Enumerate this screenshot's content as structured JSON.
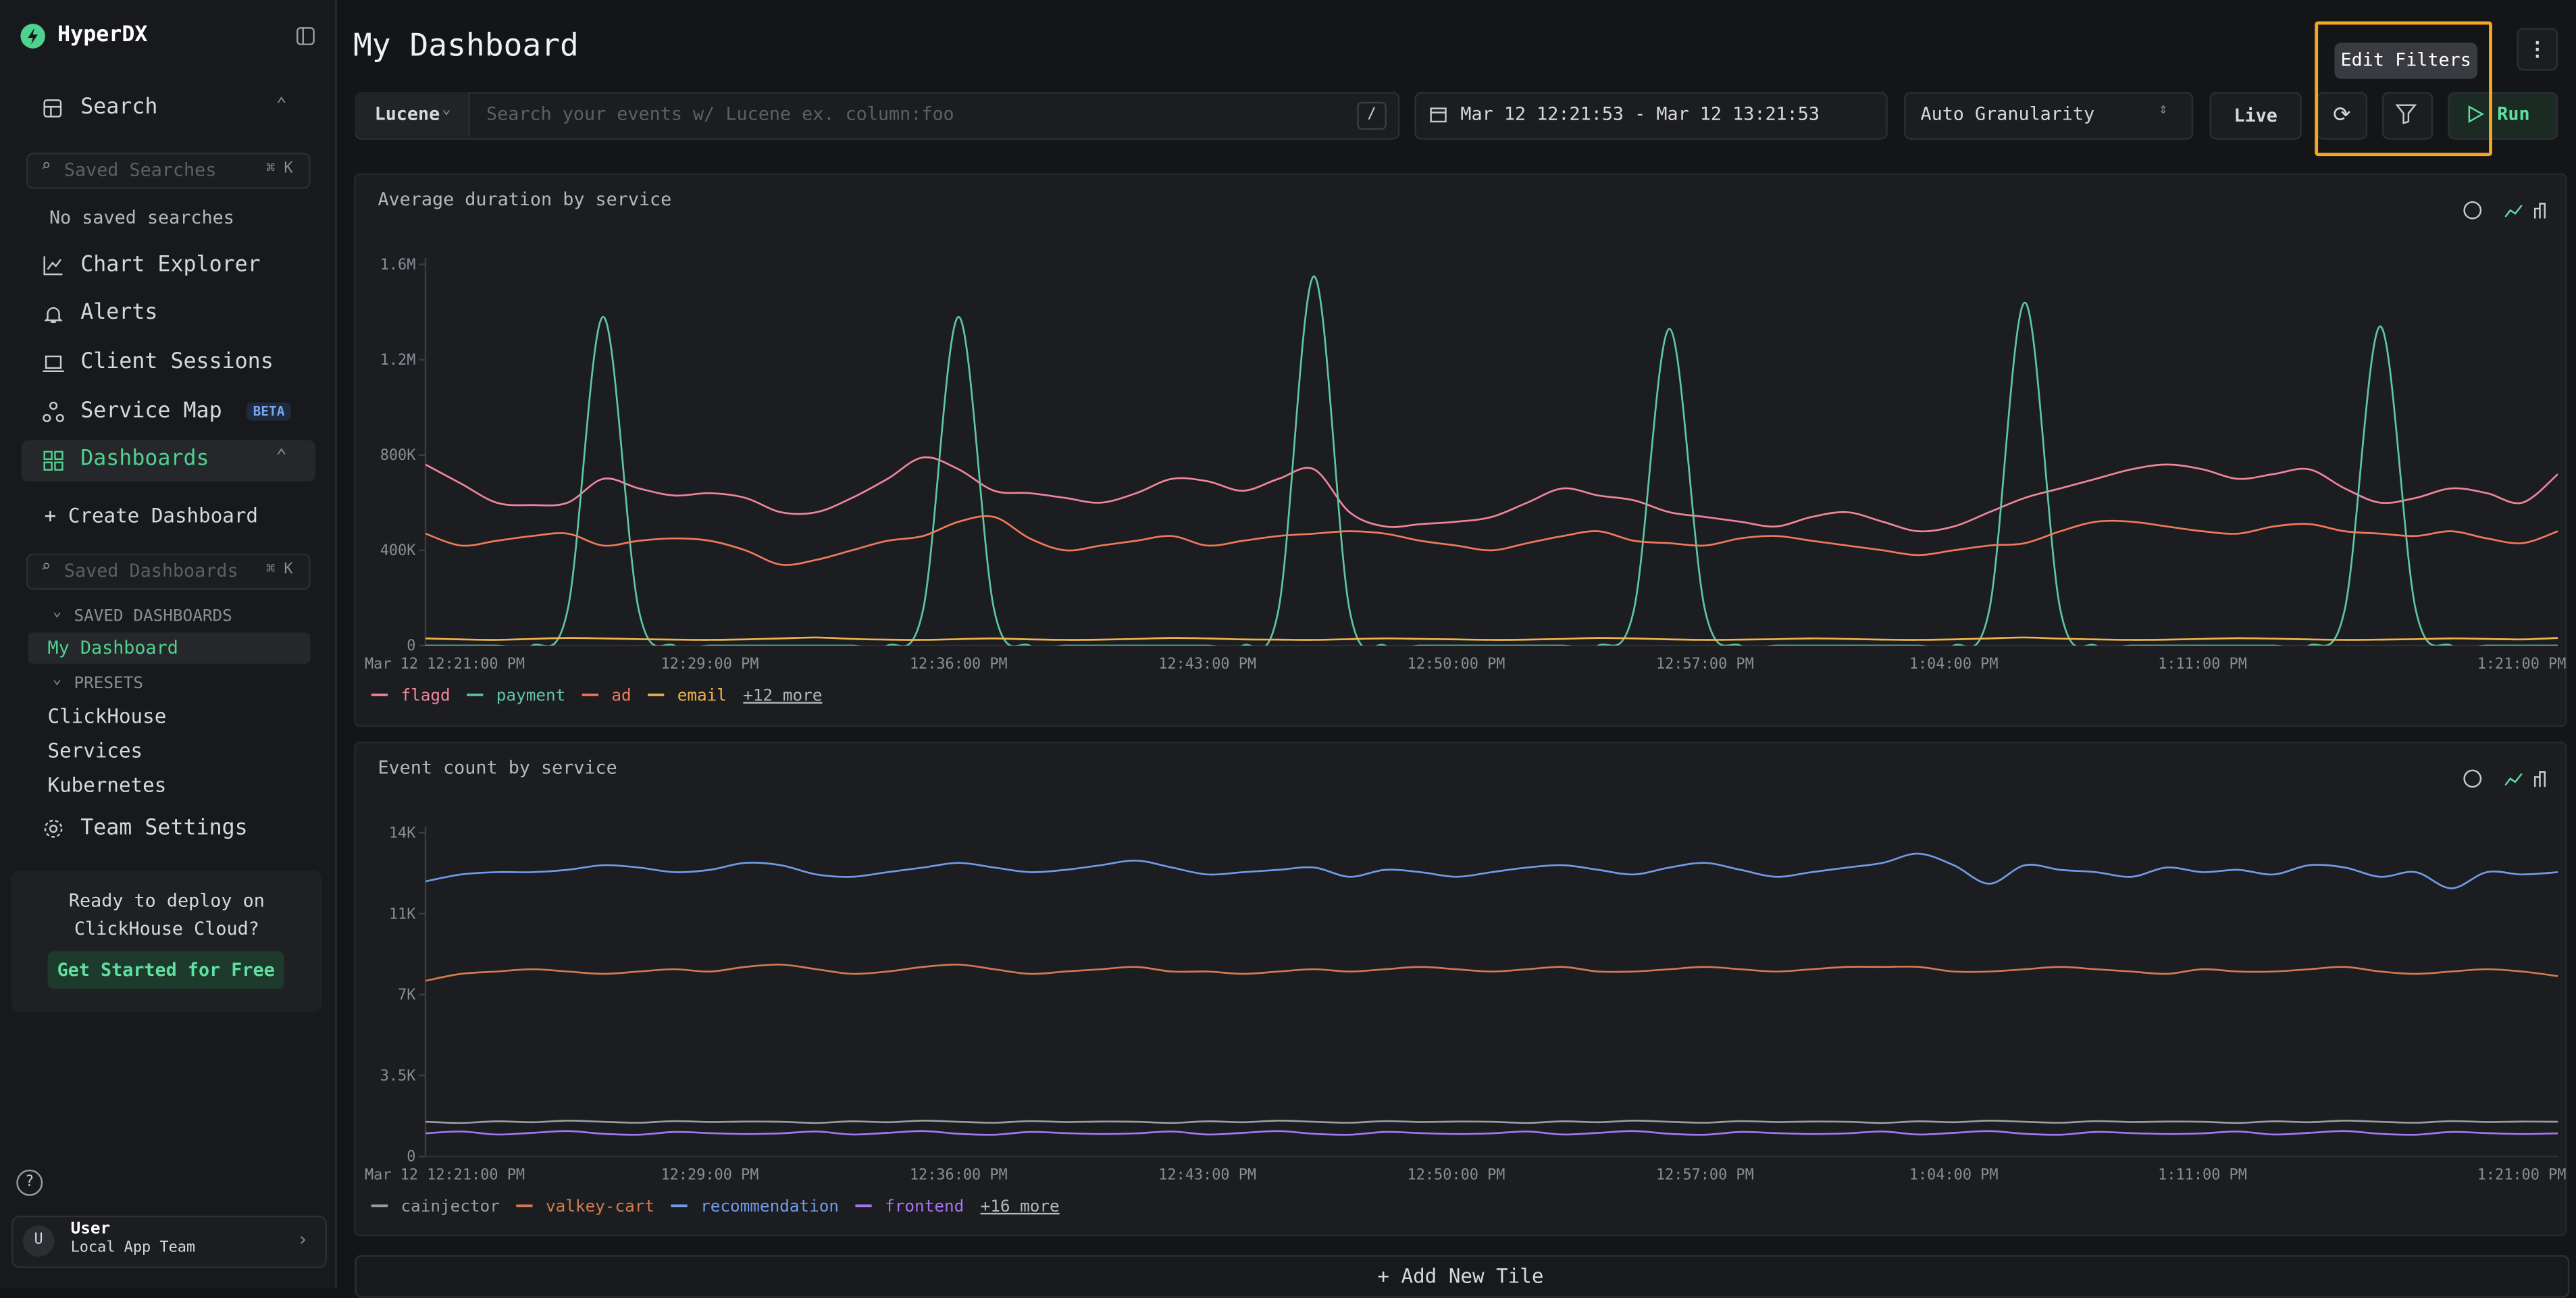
{
  "sidebar": {
    "brand": "HyperDX",
    "search": "Search",
    "saved_searches_placeholder": "Saved Searches",
    "shortcut": "⌘ K",
    "no_saved_searches": "No saved searches",
    "nav": [
      "Chart Explorer",
      "Alerts",
      "Client Sessions",
      "Service Map"
    ],
    "beta": "BETA",
    "dashboards": "Dashboards",
    "create_dashboard": "+ Create Dashboard",
    "saved_dashboards_placeholder": "Saved Dashboards",
    "saved_dashboards_heading": "SAVED DASHBOARDS",
    "saved_dashboards": [
      "My Dashboard"
    ],
    "presets_heading": "PRESETS",
    "presets": [
      "ClickHouse",
      "Services",
      "Kubernetes"
    ],
    "team_settings": "Team Settings",
    "promo": "Ready to deploy on ClickHouse Cloud?",
    "promo_button": "Get Started for Free",
    "help": "?",
    "user_initial": "U",
    "user_name": "User",
    "user_team": "Local App Team"
  },
  "header": {
    "title": "My Dashboard",
    "query_language": "Lucene",
    "search_placeholder": "Search your events w/ Lucene ex. column:foo",
    "search_shortcut": "/",
    "time_range": "Mar 12 12:21:53 - Mar 12 13:21:53",
    "granularity": "Auto Granularity",
    "live": "Live",
    "tooltip": "Edit Filters",
    "run": "Run"
  },
  "chart_data": [
    {
      "type": "line",
      "title": "Average duration by service",
      "categories": [
        "Mar 12 12:21:00 PM",
        null,
        null,
        null,
        null,
        null,
        null,
        null,
        "12:29:00 PM",
        null,
        null,
        null,
        null,
        null,
        null,
        "12:36:00 PM",
        null,
        null,
        null,
        null,
        null,
        null,
        "12:43:00 PM",
        null,
        null,
        null,
        null,
        null,
        null,
        "12:50:00 PM",
        null,
        null,
        null,
        null,
        null,
        null,
        "12:57:00 PM",
        null,
        null,
        null,
        null,
        null,
        null,
        "1:04:00 PM",
        null,
        null,
        null,
        null,
        null,
        null,
        "1:11:00 PM",
        null,
        null,
        null,
        null,
        null,
        null,
        null,
        null,
        null,
        "1:21:00 PM"
      ],
      "ylim": [
        0,
        1600000
      ],
      "yticks": [
        0,
        {
          "value": 400000,
          "label": "400K"
        },
        {
          "value": 800000,
          "label": "800K"
        },
        {
          "value": 1200000,
          "label": "1.2M"
        },
        {
          "value": 1600000,
          "label": "1.6M"
        }
      ],
      "series": [
        {
          "name": "flagd",
          "color": "#f0869a",
          "values": [
            760000,
            680000,
            600000,
            590000,
            600000,
            700000,
            660000,
            630000,
            640000,
            620000,
            560000,
            560000,
            620000,
            700000,
            790000,
            740000,
            650000,
            640000,
            620000,
            600000,
            640000,
            700000,
            690000,
            650000,
            700000,
            740000,
            560000,
            500000,
            510000,
            520000,
            540000,
            600000,
            660000,
            630000,
            610000,
            560000,
            540000,
            520000,
            500000,
            540000,
            560000,
            520000,
            480000,
            500000,
            560000,
            620000,
            660000,
            700000,
            740000,
            760000,
            740000,
            700000,
            720000,
            740000,
            660000,
            600000,
            620000,
            660000,
            640000,
            600000,
            720000
          ]
        },
        {
          "name": "payment",
          "color": "#5fc6a0",
          "values": [
            0,
            0,
            0,
            0,
            150000,
            1380000,
            150000,
            0,
            0,
            0,
            0,
            0,
            0,
            0,
            150000,
            1380000,
            150000,
            0,
            0,
            0,
            0,
            0,
            0,
            0,
            150000,
            1550000,
            150000,
            0,
            0,
            0,
            0,
            0,
            0,
            0,
            150000,
            1330000,
            150000,
            0,
            0,
            0,
            0,
            0,
            0,
            0,
            150000,
            1440000,
            150000,
            0,
            0,
            0,
            0,
            0,
            0,
            0,
            150000,
            1340000,
            150000,
            0,
            0,
            0,
            0
          ]
        },
        {
          "name": "ad",
          "color": "#f07a5a",
          "values": [
            470000,
            420000,
            440000,
            460000,
            470000,
            420000,
            440000,
            450000,
            440000,
            400000,
            340000,
            360000,
            400000,
            440000,
            460000,
            520000,
            540000,
            450000,
            400000,
            420000,
            440000,
            460000,
            420000,
            440000,
            460000,
            470000,
            480000,
            470000,
            440000,
            420000,
            400000,
            430000,
            460000,
            480000,
            440000,
            430000,
            420000,
            450000,
            460000,
            440000,
            420000,
            400000,
            380000,
            400000,
            420000,
            430000,
            480000,
            520000,
            520000,
            500000,
            480000,
            470000,
            500000,
            510000,
            480000,
            470000,
            460000,
            480000,
            450000,
            430000,
            480000
          ]
        },
        {
          "name": "email",
          "color": "#f0b44a",
          "values": [
            30000,
            26000,
            24000,
            28000,
            32000,
            30000,
            27000,
            25000,
            24000,
            26000,
            30000,
            34000,
            28000,
            25000,
            24000,
            27000,
            30000,
            26000,
            24000,
            25000,
            28000,
            32000,
            30000,
            26000,
            25000,
            24000,
            27000,
            30000,
            28000,
            26000,
            24000,
            25000,
            28000,
            32000,
            30000,
            26000,
            24000,
            25000,
            27000,
            30000,
            28000,
            25000,
            24000,
            26000,
            30000,
            34000,
            29000,
            26000,
            24000,
            25000,
            28000,
            31000,
            29000,
            26000,
            24000,
            25000,
            27000,
            30000,
            28000,
            26000,
            32000
          ]
        }
      ],
      "more_label": "+12 more"
    },
    {
      "type": "line",
      "title": "Event count by service",
      "categories": [
        "Mar 12 12:21:00 PM",
        null,
        null,
        null,
        null,
        null,
        null,
        null,
        "12:29:00 PM",
        null,
        null,
        null,
        null,
        null,
        null,
        "12:36:00 PM",
        null,
        null,
        null,
        null,
        null,
        null,
        "12:43:00 PM",
        null,
        null,
        null,
        null,
        null,
        null,
        "12:50:00 PM",
        null,
        null,
        null,
        null,
        null,
        null,
        "12:57:00 PM",
        null,
        null,
        null,
        null,
        null,
        null,
        "1:04:00 PM",
        null,
        null,
        null,
        null,
        null,
        null,
        "1:11:00 PM",
        null,
        null,
        null,
        null,
        null,
        null,
        null,
        null,
        null,
        "1:21:00 PM"
      ],
      "ylim": [
        0,
        14000
      ],
      "yticks": [
        0,
        {
          "value": 3500,
          "label": "3.5K"
        },
        {
          "value": 7000,
          "label": "7K"
        },
        {
          "value": 10500,
          "label": "11K"
        },
        {
          "value": 14000,
          "label": "14K"
        }
      ],
      "series": [
        {
          "name": "cainjector",
          "color": "#9a9ca2",
          "values": [
            1500,
            1450,
            1520,
            1480,
            1550,
            1500,
            1460,
            1530,
            1490,
            1510,
            1500,
            1450,
            1520,
            1480,
            1550,
            1500,
            1460,
            1530,
            1490,
            1510,
            1500,
            1450,
            1520,
            1480,
            1550,
            1500,
            1460,
            1530,
            1490,
            1510,
            1500,
            1450,
            1520,
            1480,
            1550,
            1500,
            1460,
            1530,
            1490,
            1510,
            1500,
            1450,
            1520,
            1480,
            1550,
            1500,
            1460,
            1530,
            1490,
            1510,
            1500,
            1450,
            1520,
            1480,
            1550,
            1500,
            1460,
            1530,
            1490,
            1510,
            1500
          ]
        },
        {
          "name": "valkey-cart",
          "color": "#d27a4e",
          "values": [
            7600,
            7900,
            8000,
            8100,
            8000,
            7900,
            8000,
            8100,
            8000,
            8200,
            8300,
            8100,
            7900,
            8000,
            8200,
            8300,
            8100,
            7900,
            8000,
            8100,
            8200,
            8000,
            8000,
            7900,
            8000,
            8100,
            8000,
            8100,
            8200,
            8100,
            8000,
            8100,
            8200,
            8000,
            8000,
            8100,
            8200,
            8100,
            8000,
            8100,
            8200,
            8200,
            8200,
            8000,
            8000,
            8100,
            8200,
            8100,
            8000,
            7900,
            8100,
            8000,
            8000,
            8100,
            8200,
            8000,
            7900,
            8000,
            8100,
            8000,
            7800
          ]
        },
        {
          "name": "recommendation",
          "color": "#6f9be8",
          "values": [
            11900,
            12200,
            12300,
            12300,
            12400,
            12600,
            12500,
            12300,
            12400,
            12700,
            12600,
            12200,
            12100,
            12300,
            12500,
            12700,
            12500,
            12300,
            12400,
            12600,
            12800,
            12500,
            12200,
            12300,
            12400,
            12500,
            12100,
            12400,
            12300,
            12100,
            12300,
            12500,
            12600,
            12400,
            12200,
            12500,
            12700,
            12400,
            12100,
            12300,
            12500,
            12700,
            13100,
            12600,
            11800,
            12600,
            12400,
            12300,
            12100,
            12500,
            12300,
            12400,
            12200,
            12600,
            12500,
            12100,
            12300,
            11600,
            12300,
            12200,
            12300
          ]
        },
        {
          "name": "frontend",
          "color": "#a476f0",
          "values": [
            1000,
            1080,
            950,
            1020,
            1100,
            980,
            940,
            1060,
            1010,
            970,
            1000,
            1080,
            950,
            1020,
            1100,
            980,
            940,
            1060,
            1010,
            970,
            1000,
            1080,
            950,
            1020,
            1100,
            980,
            940,
            1060,
            1010,
            970,
            1000,
            1080,
            950,
            1020,
            1100,
            980,
            940,
            1060,
            1010,
            970,
            1000,
            1080,
            950,
            1020,
            1100,
            980,
            940,
            1060,
            1010,
            970,
            1000,
            1080,
            950,
            1020,
            1100,
            980,
            940,
            1060,
            1010,
            970,
            1000
          ]
        }
      ],
      "more_label": "+16 more"
    }
  ],
  "add_tile": "+ Add New Tile"
}
